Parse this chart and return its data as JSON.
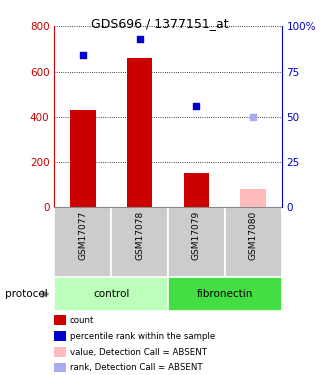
{
  "title": "GDS696 / 1377151_at",
  "samples": [
    "GSM17077",
    "GSM17078",
    "GSM17079",
    "GSM17080"
  ],
  "bar_values": [
    430,
    660,
    150,
    0
  ],
  "bar_colors": [
    "#cc0000",
    "#cc0000",
    "#cc0000",
    null
  ],
  "bar_absent_values": [
    0,
    0,
    0,
    80
  ],
  "scatter_values": [
    84,
    93,
    56,
    null
  ],
  "scatter_absent_values": [
    null,
    null,
    null,
    50
  ],
  "scatter_color": "#0000cc",
  "scatter_absent_color": "#aaaaee",
  "bar_absent_color": "#ffbbbb",
  "ylim_left": [
    0,
    800
  ],
  "ylim_right": [
    0,
    100
  ],
  "yticks_left": [
    0,
    200,
    400,
    600,
    800
  ],
  "yticks_left_labels": [
    "0",
    "200",
    "400",
    "600",
    "800"
  ],
  "yticks_right": [
    0,
    25,
    50,
    75,
    100
  ],
  "yticks_right_labels": [
    "0",
    "25",
    "50",
    "75",
    "100%"
  ],
  "groups": [
    {
      "label": "control",
      "indices": [
        0,
        1
      ],
      "color": "#bbffbb"
    },
    {
      "label": "fibronectin",
      "indices": [
        2,
        3
      ],
      "color": "#44dd44"
    }
  ],
  "protocol_label": "protocol",
  "legend_items": [
    {
      "color": "#cc0000",
      "label": "count"
    },
    {
      "color": "#0000cc",
      "label": "percentile rank within the sample"
    },
    {
      "color": "#ffbbbb",
      "label": "value, Detection Call = ABSENT"
    },
    {
      "color": "#aaaaee",
      "label": "rank, Detection Call = ABSENT"
    }
  ],
  "left_axis_color": "#cc0000",
  "right_axis_color": "#0000cc",
  "bg_color": "#ffffff",
  "grid_color": "#000000",
  "tick_label_area_bg": "#cccccc"
}
